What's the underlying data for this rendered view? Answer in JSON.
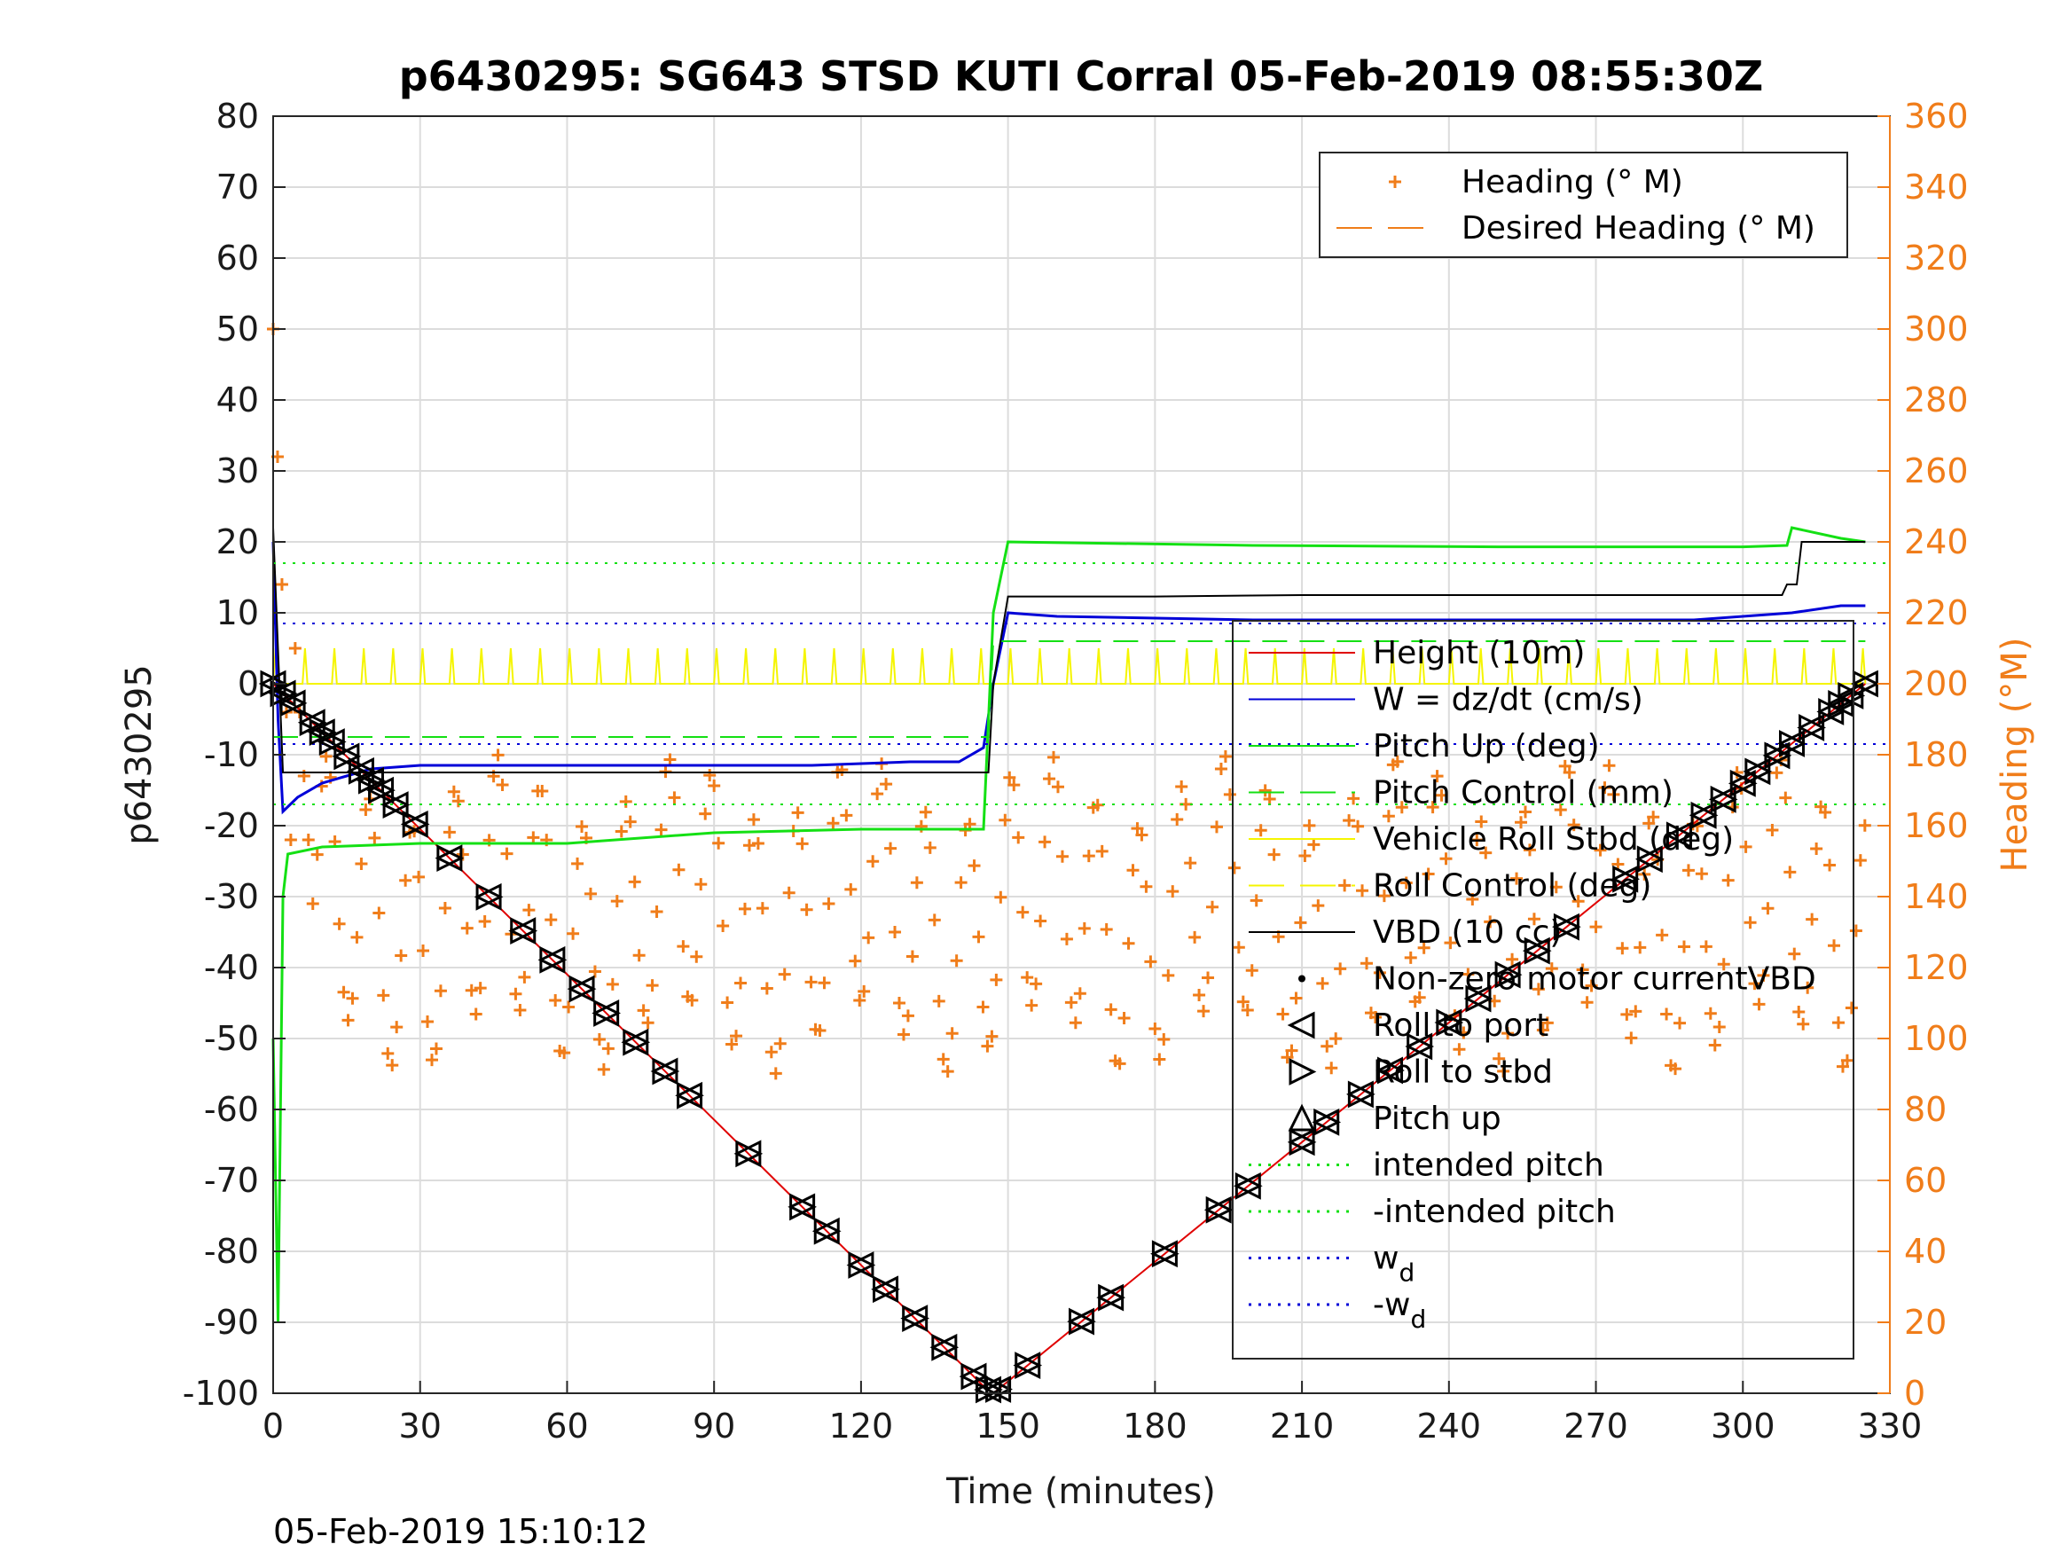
{
  "chart_data": {
    "type": "line",
    "title": "p6430295: SG643 STSD KUTI Corral 05-Feb-2019 08:55:30Z",
    "xlabel": "Time (minutes)",
    "ylabel_left": "p6430295",
    "ylabel_right": "Heading (°M)",
    "timestamp": "05-Feb-2019 15:10:12",
    "xlim": [
      0,
      330
    ],
    "ylim_left": [
      -100,
      80
    ],
    "ylim_right": [
      0,
      360
    ],
    "xticks": [
      "0",
      "30",
      "60",
      "90",
      "120",
      "150",
      "180",
      "210",
      "240",
      "270",
      "300",
      "330"
    ],
    "yticks_left": [
      "80",
      "70",
      "60",
      "50",
      "40",
      "30",
      "20",
      "10",
      "0",
      "-10",
      "-20",
      "-30",
      "-40",
      "-50",
      "-60",
      "-70",
      "-80",
      "-90",
      "-100"
    ],
    "yticks_right": [
      "360",
      "340",
      "320",
      "300",
      "280",
      "260",
      "240",
      "220",
      "200",
      "180",
      "160",
      "140",
      "120",
      "100",
      "80",
      "60",
      "40",
      "20",
      "0"
    ],
    "grid": true,
    "legend_top": [
      {
        "label": "Heading (° M)",
        "color": "#f07d1a",
        "style": "plus"
      },
      {
        "label": "Desired Heading (° M)",
        "color": "#f07d1a",
        "style": "dashed"
      }
    ],
    "legend_main": [
      {
        "label": "Height (10m)",
        "color": "#e00000",
        "style": "solid"
      },
      {
        "label": "W = dz/dt (cm/s)",
        "color": "#0000d8",
        "style": "solid"
      },
      {
        "label": "Pitch Up (deg)",
        "color": "#14e014",
        "style": "solid"
      },
      {
        "label": "Pitch Control (mm)",
        "color": "#14e014",
        "style": "dashed"
      },
      {
        "label": "Vehicle Roll Stbd (deg)",
        "color": "#f5f500",
        "style": "solid"
      },
      {
        "label": "Roll Control (deg)",
        "color": "#f5f500",
        "style": "dashed"
      },
      {
        "label": "VBD (10 cc)",
        "color": "#000000",
        "style": "solid"
      },
      {
        "label": "Non-zero motor currentVBD",
        "color": "#000000",
        "style": "dot"
      },
      {
        "label": "Roll to port",
        "color": "#000000",
        "style": "tri-left"
      },
      {
        "label": "Roll to stbd",
        "color": "#000000",
        "style": "tri-right"
      },
      {
        "label": "Pitch up",
        "color": "#000000",
        "style": "tri-up"
      },
      {
        "label": "intended pitch",
        "color": "#14e014",
        "style": "dotted"
      },
      {
        "label": "-intended pitch",
        "color": "#14e014",
        "style": "dotted"
      },
      {
        "label": "w",
        "sub": "d",
        "color": "#0000d8",
        "style": "dotted"
      },
      {
        "label": "-w",
        "sub": "d",
        "color": "#0000d8",
        "style": "dotted"
      }
    ],
    "series": [
      {
        "name": "Height (10m)",
        "axis": "left",
        "x": [
          0,
          145,
          147,
          325
        ],
        "y": [
          0,
          -99,
          -100,
          0
        ]
      },
      {
        "name": "W = dz/dt (cm/s)",
        "axis": "left",
        "x": [
          0,
          1,
          2,
          5,
          10,
          15,
          20,
          30,
          60,
          90,
          110,
          130,
          140,
          145,
          147,
          150,
          160,
          200,
          250,
          270,
          290,
          300,
          310,
          320,
          325
        ],
        "y": [
          20,
          -5,
          -18,
          -16,
          -14,
          -13,
          -12,
          -11.5,
          -11.5,
          -11.5,
          -11.5,
          -11,
          -11,
          -9,
          0,
          10,
          9.5,
          9,
          9,
          9,
          9,
          9.5,
          10,
          11,
          11
        ]
      },
      {
        "name": "Pitch Up (deg)",
        "axis": "left",
        "x": [
          0,
          1,
          2,
          3,
          10,
          30,
          60,
          90,
          120,
          145,
          147,
          150,
          200,
          250,
          300,
          309,
          310,
          320,
          325
        ],
        "y": [
          -50,
          -90,
          -30,
          -24,
          -23,
          -22.5,
          -22.5,
          -21,
          -20.5,
          -20.5,
          10,
          20,
          19.5,
          19.3,
          19.3,
          19.5,
          22,
          20.5,
          20
        ]
      },
      {
        "name": "Pitch Control (mm)",
        "axis": "left",
        "x": [
          0,
          146,
          147,
          325
        ],
        "y": [
          -7.5,
          -7.5,
          6,
          6
        ]
      },
      {
        "name": "VBD (10 cc)",
        "axis": "left",
        "x": [
          0,
          2,
          146,
          147,
          150,
          180,
          210,
          250,
          300,
          308,
          309,
          311,
          312,
          325
        ],
        "y": [
          22,
          -12.5,
          -12.5,
          0,
          12.3,
          12.3,
          12.5,
          12.5,
          12.5,
          12.5,
          14,
          14,
          20,
          20
        ]
      },
      {
        "name": "intended pitch",
        "axis": "left",
        "x": [
          0,
          330
        ],
        "y": [
          17,
          17
        ]
      },
      {
        "name": "-intended pitch",
        "axis": "left",
        "x": [
          0,
          330
        ],
        "y": [
          -17,
          -17
        ]
      },
      {
        "name": "w_d",
        "axis": "left",
        "x": [
          0,
          330
        ],
        "y": [
          8.5,
          8.5
        ]
      },
      {
        "name": "-w_d",
        "axis": "left",
        "x": [
          0,
          330
        ],
        "y": [
          -8.5,
          -8.5
        ]
      },
      {
        "name": "Heading (° M)",
        "axis": "right",
        "pattern": "oscillating 100-170 deg, spikes to ~340 at start"
      }
    ],
    "pitch_markers_x": [
      0,
      2,
      4,
      8,
      10,
      12,
      15,
      18,
      20,
      22,
      25,
      29,
      36,
      44,
      51,
      57,
      63,
      68,
      74,
      80,
      85,
      97,
      108,
      113,
      120,
      125,
      131,
      137,
      143,
      146,
      148,
      154,
      165,
      171,
      182,
      193,
      199,
      210,
      215,
      222,
      228,
      234,
      240,
      246,
      252,
      258,
      264,
      276,
      281,
      287,
      292,
      296,
      300,
      303,
      307,
      310,
      314,
      318,
      320,
      322,
      325
    ]
  }
}
